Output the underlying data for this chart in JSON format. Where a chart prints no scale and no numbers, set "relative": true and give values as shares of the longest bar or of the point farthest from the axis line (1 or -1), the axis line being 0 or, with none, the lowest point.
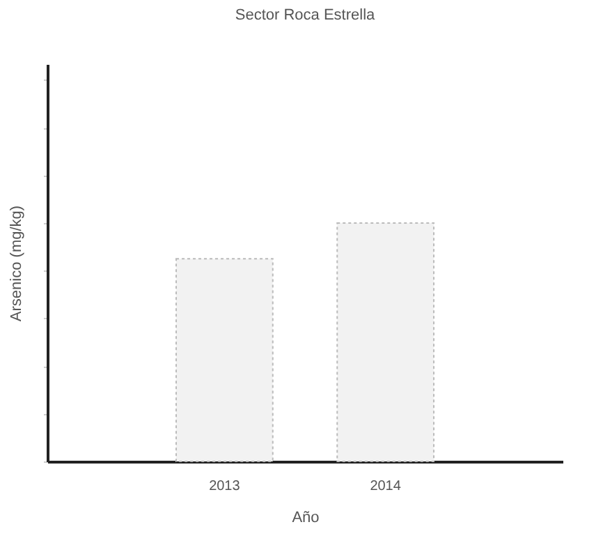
{
  "chart_data": {
    "type": "bar",
    "title": "Sector Roca Estrella",
    "xlabel": "Año",
    "ylabel": "Arsenico (mg/kg)",
    "categories": [
      "2013",
      "2014"
    ],
    "values": [
      0.85,
      1
    ],
    "color": "#f2f2f2",
    "relative": true
  }
}
